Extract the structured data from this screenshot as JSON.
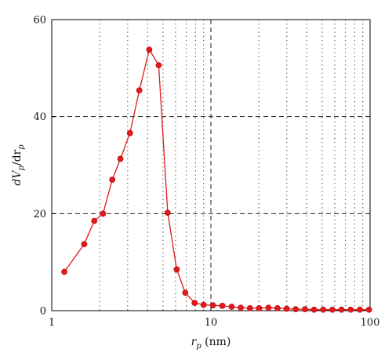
{
  "chart_data": {
    "type": "line",
    "x_scale": "log",
    "xlim": [
      1,
      100
    ],
    "ylim": [
      0,
      60
    ],
    "x_ticks": [
      {
        "value": 1,
        "label": "1"
      },
      {
        "value": 10,
        "label": "10"
      },
      {
        "value": 100,
        "label": "100"
      }
    ],
    "y_ticks": [
      {
        "value": 0,
        "label": "0"
      },
      {
        "value": 20,
        "label": "20"
      },
      {
        "value": 40,
        "label": "40"
      },
      {
        "value": 60,
        "label": "60"
      }
    ],
    "xlabel": {
      "main": "r",
      "sub": "p",
      "unit": " (nm)"
    },
    "ylabel": {
      "prefix": "dV",
      "sub1": "p",
      "mid": "/dr",
      "sub2": "p"
    },
    "grid": {
      "major": "dashed",
      "minor_x": "dotted",
      "major_x_values": [
        10
      ],
      "major_y_values": [
        20,
        40
      ]
    },
    "series": [
      {
        "color": "#e0191b",
        "marker": "circle",
        "x": [
          1.2,
          1.6,
          1.85,
          2.1,
          2.4,
          2.7,
          3.1,
          3.55,
          4.1,
          4.7,
          5.35,
          6.1,
          6.9,
          7.9,
          9.0,
          10.3,
          11.8,
          13.5,
          15.4,
          17.6,
          20.1,
          23.0,
          26.2,
          29.9,
          34.1,
          39.0,
          44.5,
          50.8,
          58.0,
          66.2,
          75.6,
          86.3,
          98.5
        ],
        "y": [
          8.0,
          13.7,
          18.5,
          20.0,
          27.0,
          31.3,
          36.6,
          45.4,
          53.8,
          50.6,
          20.2,
          8.5,
          3.7,
          1.6,
          1.2,
          1.1,
          1.0,
          0.8,
          0.6,
          0.5,
          0.5,
          0.6,
          0.5,
          0.4,
          0.3,
          0.3,
          0.2,
          0.2,
          0.2,
          0.2,
          0.2,
          0.2,
          0.2
        ]
      }
    ]
  }
}
